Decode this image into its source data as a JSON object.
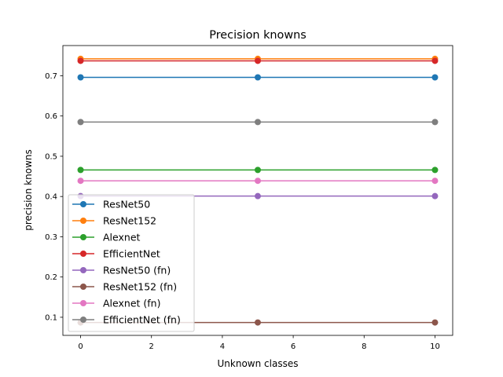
{
  "chart_data": {
    "type": "line",
    "title": "Precision knowns",
    "xlabel": "Unknown classes",
    "ylabel": "precision knowns",
    "x": [
      0,
      5,
      10
    ],
    "xlim": [
      -0.5,
      10.5
    ],
    "ylim": [
      0.055,
      0.775
    ],
    "xticks": [
      0,
      2,
      4,
      6,
      8,
      10
    ],
    "yticks": [
      0.1,
      0.2,
      0.3,
      0.4,
      0.5,
      0.6,
      0.7
    ],
    "grid": false,
    "legend_position": "lower-left",
    "series": [
      {
        "name": "ResNet50",
        "color": "#1f77b4",
        "values": [
          0.696,
          0.696,
          0.696
        ]
      },
      {
        "name": "ResNet152",
        "color": "#ff7f0e",
        "values": [
          0.742,
          0.742,
          0.742
        ]
      },
      {
        "name": "Alexnet",
        "color": "#2ca02c",
        "values": [
          0.466,
          0.466,
          0.466
        ]
      },
      {
        "name": "EfficientNet",
        "color": "#d62728",
        "values": [
          0.737,
          0.737,
          0.737
        ]
      },
      {
        "name": "ResNet50 (fn)",
        "color": "#9467bd",
        "values": [
          0.401,
          0.401,
          0.401
        ]
      },
      {
        "name": "ResNet152 (fn)",
        "color": "#8c564b",
        "values": [
          0.087,
          0.087,
          0.087
        ]
      },
      {
        "name": "Alexnet (fn)",
        "color": "#e377c2",
        "values": [
          0.439,
          0.439,
          0.439
        ]
      },
      {
        "name": "EfficientNet (fn)",
        "color": "#7f7f7f",
        "values": [
          0.585,
          0.585,
          0.585
        ]
      }
    ]
  }
}
